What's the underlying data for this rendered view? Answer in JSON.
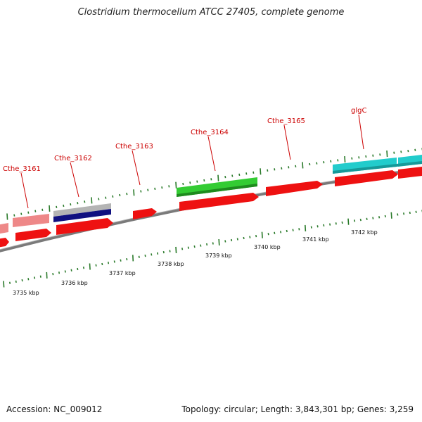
{
  "title": "Clostridium thermocellum ATCC 27405, complete genome",
  "footer": {
    "accession": "Accession: NC_009012",
    "summary": "Topology: circular; Length: 3,843,301 bp; Genes: 3,259"
  },
  "colors": {
    "cds": "#ee1111",
    "rrna_pink": "#ee8888",
    "grey_feature": "#b4b4b4",
    "navy_feature": "#101080",
    "green_feature": "#33cc33",
    "cyan_feature": "#22cccc",
    "tick": "#2a7a2a",
    "backbone": "#808080",
    "gene_label": "#cc0000"
  },
  "gene_labels": [
    {
      "name": "Cthe_3161"
    },
    {
      "name": "Cthe_3162"
    },
    {
      "name": "Cthe_3163"
    },
    {
      "name": "Cthe_3164"
    },
    {
      "name": "Cthe_3165"
    },
    {
      "name": "glgC"
    }
  ],
  "kbp_labels": [
    {
      "text": "3735 kbp"
    },
    {
      "text": "3736 kbp"
    },
    {
      "text": "3737 kbp"
    },
    {
      "text": "3738 kbp"
    },
    {
      "text": "3739 kbp"
    },
    {
      "text": "3740 kbp"
    },
    {
      "text": "3741 kbp"
    },
    {
      "text": "3742 kbp"
    }
  ]
}
